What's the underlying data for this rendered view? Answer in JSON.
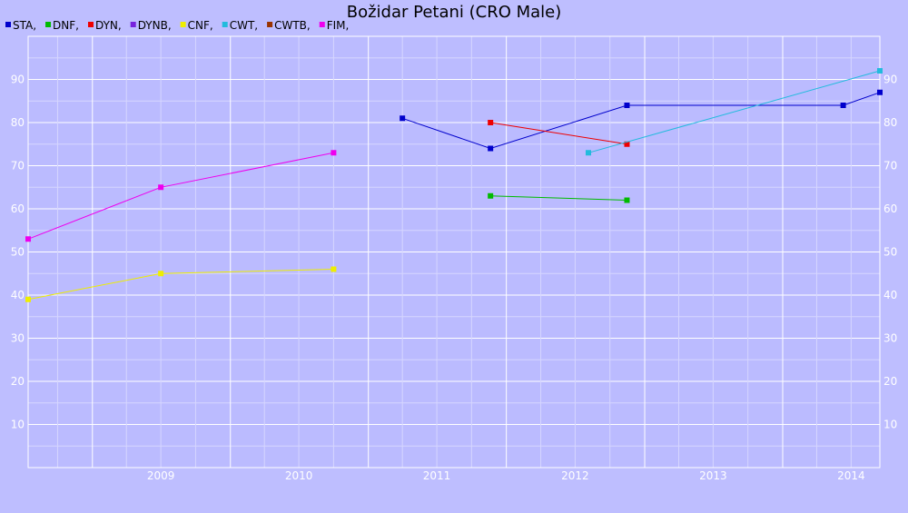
{
  "chart_data": {
    "type": "line",
    "title": "Božidar Petani (CRO Male)",
    "xlabel": "",
    "ylabel": "",
    "x_range": [
      "2008-07-15",
      "2014-09-15"
    ],
    "ylim": [
      0,
      100
    ],
    "y_ticks": [
      "10",
      "20",
      "30",
      "40",
      "50",
      "60",
      "70",
      "80",
      "90"
    ],
    "x_ticks": [
      "2009",
      "2010",
      "2011",
      "2012",
      "2013",
      "2014"
    ],
    "grid": true,
    "legend_position": "top-left",
    "series": [
      {
        "name": "STA",
        "legend_label": "STA,",
        "color": "#0000cc",
        "points": [
          [
            "2011-04-01",
            81
          ],
          [
            "2011-11-20",
            74
          ],
          [
            "2012-11-15",
            84
          ],
          [
            "2014-06-10",
            84
          ],
          [
            "2014-09-15",
            87
          ]
        ]
      },
      {
        "name": "DNF",
        "legend_label": "DNF,",
        "color": "#00bb00",
        "points": [
          [
            "2011-11-20",
            63
          ],
          [
            "2012-11-15",
            62
          ]
        ]
      },
      {
        "name": "DYN",
        "legend_label": "DYN,",
        "color": "#ee0000",
        "points": [
          [
            "2011-11-20",
            80
          ],
          [
            "2012-11-15",
            75
          ]
        ]
      },
      {
        "name": "DYNB",
        "legend_label": "DYNB,",
        "color": "#7722dd",
        "points": []
      },
      {
        "name": "CNF",
        "legend_label": "CNF,",
        "color": "#eeee00",
        "points": [
          [
            "2008-07-15",
            39
          ],
          [
            "2009-07-01",
            45
          ],
          [
            "2010-10-01",
            46
          ]
        ]
      },
      {
        "name": "CWT",
        "legend_label": "CWT,",
        "color": "#22bbdd",
        "points": [
          [
            "2012-08-05",
            73
          ],
          [
            "2014-09-15",
            92
          ]
        ]
      },
      {
        "name": "CWTB",
        "legend_label": "CWTB,",
        "color": "#993300",
        "points": []
      },
      {
        "name": "FIM",
        "legend_label": "FIM,",
        "color": "#ee00ee",
        "points": [
          [
            "2008-07-15",
            53
          ],
          [
            "2009-07-01",
            65
          ],
          [
            "2010-10-01",
            73
          ]
        ]
      }
    ]
  }
}
